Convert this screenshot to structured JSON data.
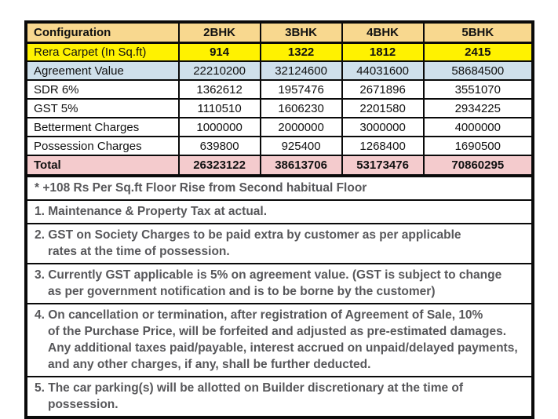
{
  "table": {
    "header_label": "Configuration",
    "columns": [
      "2BHK",
      "3BHK",
      "4BHK",
      "5BHK"
    ],
    "rows": [
      {
        "label": "Rera Carpet (In Sq.ft)",
        "values": [
          "914",
          "1322",
          "1812",
          "2415"
        ],
        "style": "carpet"
      },
      {
        "label": "Agreement Value",
        "values": [
          "22210200",
          "32124600",
          "44031600",
          "58684500"
        ],
        "style": "agreement"
      },
      {
        "label": "SDR 6%",
        "values": [
          "1362612",
          "1957476",
          "2671896",
          "3551070"
        ],
        "style": "plain"
      },
      {
        "label": "GST 5%",
        "values": [
          "1110510",
          "1606230",
          "2201580",
          "2934225"
        ],
        "style": "plain"
      },
      {
        "label": "Betterment Charges",
        "values": [
          "1000000",
          "2000000",
          "3000000",
          "4000000"
        ],
        "style": "plain"
      },
      {
        "label": "Possession Charges",
        "values": [
          "639800",
          "925400",
          "1268400",
          "1690500"
        ],
        "style": "plain"
      },
      {
        "label": "Total",
        "values": [
          "26323122",
          "38613706",
          "53173476",
          "70860295"
        ],
        "style": "total"
      }
    ]
  },
  "notes": [
    {
      "lines": [
        "* +108 Rs Per Sq.ft Floor Rise from Second habitual Floor"
      ]
    },
    {
      "lines": [
        "1. Maintenance & Property Tax at actual."
      ]
    },
    {
      "lines": [
        "2. GST on Society Charges to be paid extra by customer as per applicable",
        "rates at the time of possession."
      ]
    },
    {
      "lines": [
        "3. Currently GST applicable is 5% on agreement value. (GST is subject to change",
        "as per government notification and is to be borne by the customer)"
      ]
    },
    {
      "lines": [
        "4. On cancellation or termination, after registration of Agreement of Sale, 10%",
        "of the Purchase Price, will be forfeited and adjusted as pre-estimated damages.",
        "Any additional taxes paid/payable, interest accrued on unpaid/delayed payments,",
        "and any other charges, if any, shall be further deducted."
      ]
    },
    {
      "lines": [
        "5. The car parking(s) will be allotted on Builder discretionary at the time of possession."
      ]
    }
  ],
  "colors": {
    "page_bg": "#FFFFFF",
    "border": "#0A0A0A",
    "header_bg": "#F8D88F",
    "carpet_bg": "#FFF200",
    "agreement_bg": "#CFE0EB",
    "total_bg": "#F4CBCD",
    "table_text": "#111111",
    "note_text": "#57575A"
  }
}
